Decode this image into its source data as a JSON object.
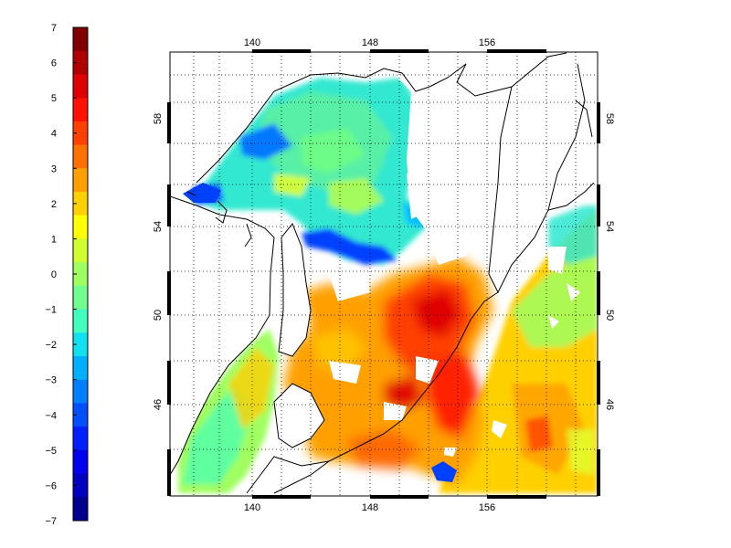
{
  "colorbar": {
    "min": -7,
    "max": 7,
    "tick_labels": [
      "7",
      "6",
      "5",
      "4",
      "3",
      "2",
      "1",
      "0",
      "−1",
      "−2",
      "−3",
      "−4",
      "−5",
      "−6",
      "−7"
    ],
    "colors": [
      "#00008f",
      "#0000bf",
      "#0000ef",
      "#0020ff",
      "#0050ff",
      "#0080ff",
      "#00b0ff",
      "#10e0ef",
      "#40ffbf",
      "#70ff8f",
      "#a0ff60",
      "#d0ff30",
      "#ffff00",
      "#ffd000",
      "#ffa000",
      "#ff7000",
      "#ff4000",
      "#ff1000",
      "#df0000",
      "#af0000",
      "#800000"
    ]
  },
  "map": {
    "lon_range": [
      136,
      164
    ],
    "lat_range": [
      43,
      61
    ],
    "lon_ticks": [
      "140",
      "148",
      "156"
    ],
    "lat_ticks": [
      "46",
      "50",
      "54",
      "58"
    ],
    "land_color": "#ffffff",
    "coast_color": "#000000",
    "grid": "dotted"
  }
}
